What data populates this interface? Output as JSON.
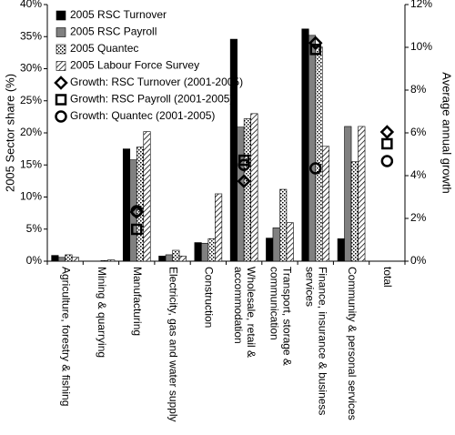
{
  "chart_data": {
    "type": "bar",
    "y_label": "2005  Sector share (%)",
    "y2_label": "Average annual growth",
    "categories": [
      [
        "Agriculture, forestry & fishing"
      ],
      [
        "Mining & quarrying"
      ],
      [
        "Manufacturing"
      ],
      [
        "Electricity, gas and water supply"
      ],
      [
        "Construction"
      ],
      [
        "Wholesale, retail &",
        "accommodation"
      ],
      [
        "Transport, storage &",
        "communication"
      ],
      [
        "Finance, insurance & business",
        "services"
      ],
      [
        "Community & personal services"
      ],
      [
        "total"
      ]
    ],
    "series": [
      {
        "name": "2005 RSC Turnover",
        "color": "#000000",
        "values": [
          0.9,
          0.0,
          17.5,
          0.8,
          2.9,
          34.6,
          3.6,
          36.2,
          3.5,
          null
        ]
      },
      {
        "name": "2005 RSC Payroll",
        "color": "#808080",
        "values": [
          0.6,
          0.0,
          15.8,
          1.0,
          2.8,
          20.9,
          5.2,
          35.2,
          21.0,
          null
        ]
      },
      {
        "name": "2005 Quantec",
        "color": "#ffffff",
        "pattern": "dots",
        "values": [
          1.0,
          0.1,
          17.8,
          1.7,
          3.5,
          22.2,
          11.2,
          33.4,
          15.5,
          null
        ]
      },
      {
        "name": "2005 Labour Force Survey",
        "color": "#ffffff",
        "pattern": "hatch",
        "values": [
          0.6,
          0.2,
          20.2,
          0.8,
          10.5,
          23.0,
          6.0,
          17.9,
          21.0,
          null
        ]
      },
      {
        "name": "Growth: RSC Turnover (2001-2005)",
        "type": "scatter",
        "marker": "diamond",
        "axis": "y2",
        "color": "#000000",
        "values": [
          null,
          null,
          2.3,
          null,
          null,
          3.74,
          null,
          10.2,
          null,
          6.04
        ]
      },
      {
        "name": "Growth: RSC Payroll (2001-2005)",
        "type": "scatter",
        "marker": "square",
        "axis": "y2",
        "color": "#000000",
        "values": [
          null,
          null,
          1.49,
          null,
          null,
          4.72,
          null,
          9.9,
          null,
          5.49
        ]
      },
      {
        "name": "Growth: Quantec (2001-2005)",
        "type": "scatter",
        "marker": "circle",
        "axis": "y2",
        "color": "#000000",
        "values": [
          null,
          null,
          2.34,
          null,
          null,
          4.5,
          null,
          4.34,
          null,
          4.68
        ]
      }
    ],
    "ylim": [
      0,
      40
    ],
    "yticks": [
      {
        "value": 0,
        "label": "0%"
      },
      {
        "value": 5,
        "label": "5%"
      },
      {
        "value": 10,
        "label": "10%"
      },
      {
        "value": 15,
        "label": "15%"
      },
      {
        "value": 20,
        "label": "20%"
      },
      {
        "value": 25,
        "label": "25%"
      },
      {
        "value": 30,
        "label": "30%"
      },
      {
        "value": 35,
        "label": "35%"
      },
      {
        "value": 40,
        "label": "40%"
      }
    ],
    "y2lim": [
      0,
      12
    ],
    "y2ticks": [
      {
        "value": 0,
        "label": "0%"
      },
      {
        "value": 2,
        "label": "2%"
      },
      {
        "value": 4,
        "label": "4%"
      },
      {
        "value": 6,
        "label": "6%"
      },
      {
        "value": 8,
        "label": "8%"
      },
      {
        "value": 10,
        "label": "10%"
      },
      {
        "value": 12,
        "label": "12%"
      }
    ],
    "legend": "top-left"
  }
}
